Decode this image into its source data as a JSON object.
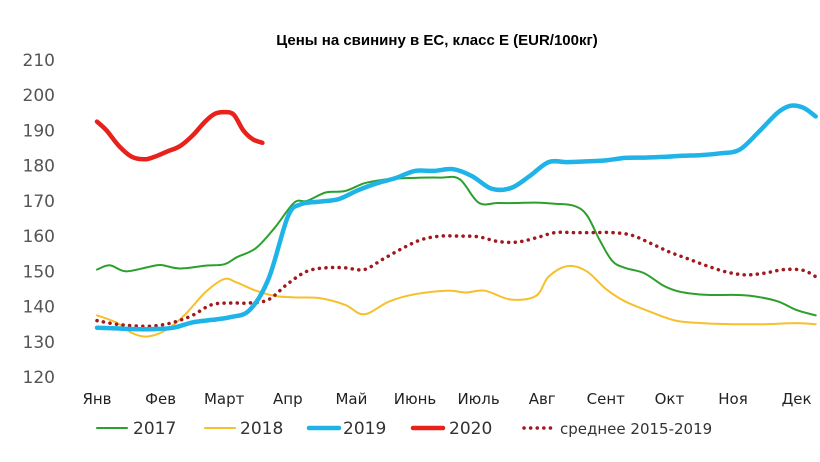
{
  "chart_data": {
    "type": "line",
    "title": "Цены на свинину в ЕС, класс Е (EUR/100кг)",
    "xlabel": "",
    "ylabel": "",
    "ylim": [
      120,
      210
    ],
    "yticks": [
      120,
      130,
      140,
      150,
      160,
      170,
      180,
      190,
      200,
      210
    ],
    "months": [
      "Янв",
      "Фев",
      "Март",
      "Апр",
      "Май",
      "Июнь",
      "Июль",
      "Авг",
      "Сент",
      "Окт",
      "Ноя",
      "Дек"
    ],
    "grid": false,
    "legend_position": "bottom",
    "series": [
      {
        "name": "2017",
        "color": "#2ca02c",
        "style": "solid",
        "weight": "thin",
        "x": [
          0,
          0.2,
          0.45,
          0.8,
          1.0,
          1.3,
          1.7,
          2.0,
          2.2,
          2.5,
          2.8,
          3.1,
          3.3,
          3.6,
          3.9,
          4.2,
          4.5,
          4.8,
          5.1,
          5.4,
          5.7,
          6.0,
          6.3,
          6.6,
          6.9,
          7.2,
          7.5,
          7.7,
          7.9,
          8.1,
          8.3,
          8.6,
          8.9,
          9.1,
          9.3,
          9.6,
          10.0,
          10.3,
          10.7,
          11.0,
          11.3
        ],
        "values": [
          150.5,
          151.7,
          150.0,
          151.2,
          151.8,
          150.8,
          151.6,
          152.0,
          154.0,
          156.6,
          162.5,
          169.5,
          170.0,
          172.4,
          172.8,
          175.0,
          176.0,
          176.4,
          176.6,
          176.6,
          176.2,
          169.5,
          169.4,
          169.4,
          169.5,
          169.2,
          168.6,
          166.0,
          159.0,
          153.0,
          151.0,
          149.5,
          146.0,
          144.5,
          143.8,
          143.3,
          143.3,
          143.0,
          141.5,
          139.0,
          137.5
        ]
      },
      {
        "name": "2018",
        "color": "#f5c02c",
        "style": "solid",
        "weight": "thin",
        "x": [
          0,
          0.3,
          0.55,
          0.8,
          1.1,
          1.4,
          1.7,
          2.0,
          2.2,
          2.5,
          2.8,
          3.1,
          3.5,
          3.9,
          4.2,
          4.6,
          5.0,
          5.5,
          5.8,
          6.1,
          6.5,
          6.9,
          7.1,
          7.4,
          7.7,
          8.0,
          8.3,
          8.7,
          9.1,
          9.5,
          10.0,
          10.5,
          11.0,
          11.3
        ],
        "values": [
          137.5,
          135.5,
          132.5,
          131.5,
          133.5,
          138.0,
          144.0,
          147.8,
          146.8,
          144.5,
          143.0,
          142.6,
          142.4,
          140.5,
          137.8,
          141.5,
          143.5,
          144.5,
          144.0,
          144.5,
          142.0,
          143.0,
          148.5,
          151.5,
          150.0,
          145.0,
          141.5,
          138.5,
          136.0,
          135.3,
          135.0,
          135.0,
          135.3,
          135.0
        ]
      },
      {
        "name": "2019",
        "color": "#1fb3e8",
        "style": "solid",
        "weight": "thick",
        "x": [
          0,
          0.3,
          0.6,
          0.9,
          1.2,
          1.5,
          1.8,
          2.1,
          2.4,
          2.7,
          3.0,
          3.2,
          3.5,
          3.8,
          4.1,
          4.4,
          4.7,
          5.0,
          5.3,
          5.6,
          5.9,
          6.2,
          6.5,
          6.8,
          7.1,
          7.4,
          7.7,
          8.0,
          8.3,
          8.6,
          8.9,
          9.2,
          9.5,
          9.8,
          10.1,
          10.4,
          10.7,
          10.9,
          11.1,
          11.3
        ],
        "values": [
          134.0,
          133.8,
          133.6,
          133.6,
          134.0,
          135.5,
          136.2,
          137.0,
          139.0,
          148.0,
          165.5,
          169.0,
          169.8,
          170.5,
          173.0,
          175.0,
          176.5,
          178.5,
          178.5,
          179.0,
          177.0,
          173.5,
          173.6,
          177.0,
          181.0,
          181.0,
          181.2,
          181.5,
          182.2,
          182.3,
          182.5,
          182.8,
          183.0,
          183.5,
          184.5,
          189.5,
          195.0,
          197.0,
          196.5,
          194.0
        ]
      },
      {
        "name": "2020",
        "color": "#e8211b",
        "style": "solid",
        "weight": "thick",
        "x": [
          0,
          0.15,
          0.35,
          0.55,
          0.75,
          0.9,
          1.1,
          1.3,
          1.5,
          1.7,
          1.85,
          2.0,
          2.15,
          2.3,
          2.45,
          2.6
        ],
        "values": [
          192.5,
          190.0,
          185.5,
          182.5,
          181.8,
          182.5,
          184.0,
          185.5,
          188.5,
          192.5,
          194.7,
          195.2,
          194.5,
          190.0,
          187.5,
          186.5
        ]
      },
      {
        "name": "среднее 2015-2019",
        "color": "#a0191e",
        "style": "dotted",
        "weight": "medium",
        "x": [
          0,
          0.3,
          0.6,
          0.9,
          1.2,
          1.5,
          1.8,
          2.1,
          2.4,
          2.7,
          3.0,
          3.3,
          3.6,
          3.9,
          4.2,
          4.5,
          4.8,
          5.1,
          5.4,
          5.7,
          6.0,
          6.3,
          6.6,
          6.9,
          7.2,
          7.5,
          7.8,
          8.1,
          8.4,
          8.7,
          9.0,
          9.3,
          9.6,
          9.9,
          10.2,
          10.5,
          10.8,
          11.1,
          11.3
        ],
        "values": [
          136.0,
          135.0,
          134.5,
          134.5,
          135.5,
          137.5,
          140.5,
          141.0,
          141.0,
          142.0,
          146.5,
          150.0,
          151.0,
          151.0,
          150.5,
          153.5,
          156.5,
          159.0,
          160.0,
          160.0,
          159.8,
          158.5,
          158.3,
          159.5,
          161.0,
          161.0,
          161.0,
          161.0,
          160.3,
          158.0,
          155.5,
          153.5,
          151.5,
          149.8,
          149.0,
          149.5,
          150.5,
          150.3,
          148.5
        ]
      }
    ]
  }
}
